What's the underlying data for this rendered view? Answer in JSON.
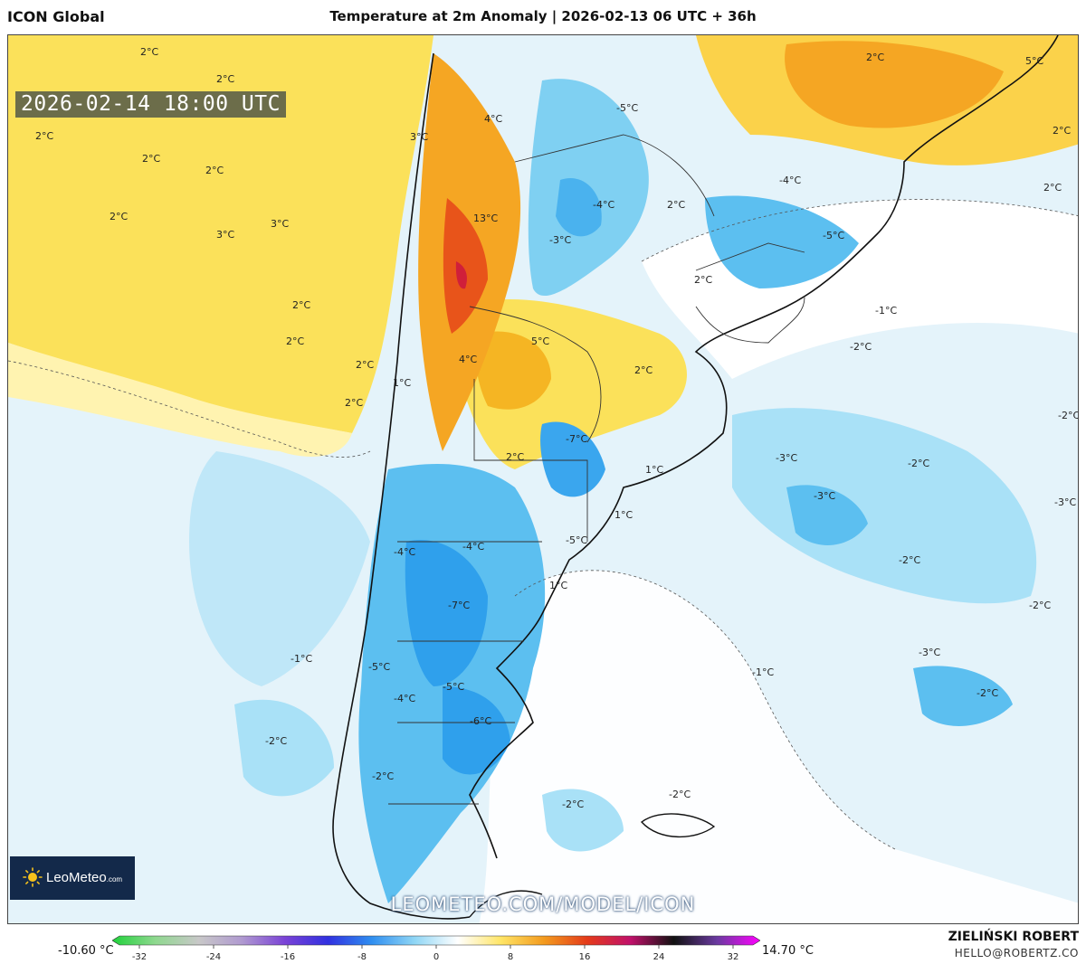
{
  "header": {
    "model": "ICON Global",
    "title": "Temperature at 2m Anomaly | 2026-02-13 06 UTC + 36h"
  },
  "map": {
    "valid_time": "2026-02-14 18:00 UTC",
    "labels": [
      {
        "text": "2°C"
      },
      {
        "text": "2°C"
      },
      {
        "text": "2°C"
      },
      {
        "text": "2°C"
      },
      {
        "text": "2°C"
      },
      {
        "text": "2°C"
      },
      {
        "text": "3°C"
      },
      {
        "text": "3°C"
      },
      {
        "text": "3°C"
      },
      {
        "text": "2°C"
      },
      {
        "text": "2°C"
      },
      {
        "text": "2°C"
      },
      {
        "text": "2°C"
      },
      {
        "text": "1°C"
      },
      {
        "text": "4°C"
      },
      {
        "text": "13°C"
      },
      {
        "text": "4°C"
      },
      {
        "text": "5°C"
      },
      {
        "text": "2°C"
      },
      {
        "text": "-5°C"
      },
      {
        "text": "-4°C"
      },
      {
        "text": "-3°C"
      },
      {
        "text": "2°C"
      },
      {
        "text": "5°C"
      },
      {
        "text": "2°C"
      },
      {
        "text": "2°C"
      },
      {
        "text": "2°C"
      },
      {
        "text": "-4°C"
      },
      {
        "text": "-5°C"
      },
      {
        "text": "2°C"
      },
      {
        "text": "-1°C"
      },
      {
        "text": "-2°C"
      },
      {
        "text": "-7°C"
      },
      {
        "text": "2°C"
      },
      {
        "text": "1°C"
      },
      {
        "text": "1°C"
      },
      {
        "text": "-5°C"
      },
      {
        "text": "-4°C"
      },
      {
        "text": "-4°C"
      },
      {
        "text": "-7°C"
      },
      {
        "text": "1°C"
      },
      {
        "text": "-3°C"
      },
      {
        "text": "-3°C"
      },
      {
        "text": "-2°C"
      },
      {
        "text": "-2°C"
      },
      {
        "text": "-3°C"
      },
      {
        "text": "-2°C"
      },
      {
        "text": "-2°C"
      },
      {
        "text": "-1°C"
      },
      {
        "text": "-5°C"
      },
      {
        "text": "-4°C"
      },
      {
        "text": "-5°C"
      },
      {
        "text": "-6°C"
      },
      {
        "text": "-1°C"
      },
      {
        "text": "-2°C"
      },
      {
        "text": "-2°C"
      },
      {
        "text": "-3°C"
      },
      {
        "text": "-2°C"
      },
      {
        "text": "-2°C"
      },
      {
        "text": "-2°C"
      }
    ]
  },
  "branding": {
    "logo_text": "LeoMeteo",
    "logo_suffix": ".com",
    "watermark": "LEOMETEO.COM/MODEL/ICON",
    "author": "ZIELIŃSKI ROBERT",
    "email": "HELLO@ROBERTZ.CO"
  },
  "colorbar": {
    "min_label": "-10.60 °C",
    "max_label": "14.70 °C",
    "ticks": [
      "-32",
      "-24",
      "-16",
      "-8",
      "0",
      "8",
      "16",
      "24",
      "32"
    ],
    "stops": [
      "#1fd23a",
      "#8fd88f",
      "#c8c8c8",
      "#b09ad0",
      "#7a42d6",
      "#3030e0",
      "#2f8ef0",
      "#8fd6f5",
      "#ffffff",
      "#ffe566",
      "#f39a1e",
      "#e43a1a",
      "#c0106a",
      "#111111",
      "#6a3aa0",
      "#ff00ff"
    ]
  }
}
